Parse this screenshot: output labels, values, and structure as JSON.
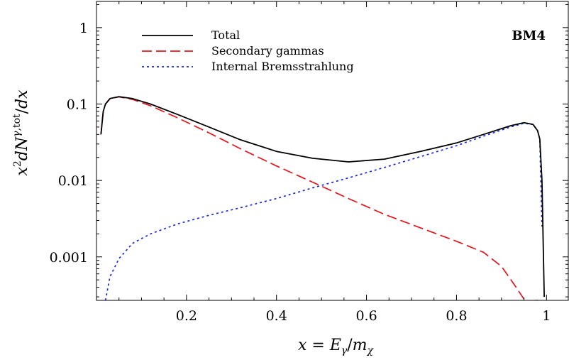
{
  "chart_data": {
    "type": "line",
    "annotation": "BM4",
    "xlabel": "x = E_γ/m_χ",
    "ylabel": "x²dN^{γ,tot}/dx",
    "x_scale": "linear",
    "y_scale": "log",
    "xlim": [
      0.0,
      1.05
    ],
    "ylim": [
      0.00027,
      2.2
    ],
    "x_ticks": [
      0.2,
      0.4,
      0.6,
      0.8,
      1.0
    ],
    "x_tick_labels": [
      "0.2",
      "0.4",
      "0.6",
      "0.8",
      "1"
    ],
    "y_ticks": [
      0.001,
      0.01,
      0.1,
      1
    ],
    "y_tick_labels": [
      "0.001",
      "0.01",
      "0.1",
      "1"
    ],
    "legend_position": "top-left",
    "grid": false,
    "series": [
      {
        "name": "Total",
        "color": "#000000",
        "style": "solid",
        "x": [
          0.01,
          0.015,
          0.02,
          0.03,
          0.05,
          0.08,
          0.12,
          0.18,
          0.25,
          0.32,
          0.4,
          0.48,
          0.56,
          0.64,
          0.72,
          0.8,
          0.86,
          0.92,
          0.95,
          0.97,
          0.98,
          0.985,
          0.99,
          0.995
        ],
        "y": [
          0.04,
          0.08,
          0.1,
          0.118,
          0.125,
          0.118,
          0.1,
          0.073,
          0.05,
          0.034,
          0.024,
          0.0195,
          0.0175,
          0.019,
          0.024,
          0.031,
          0.04,
          0.052,
          0.057,
          0.054,
          0.045,
          0.035,
          0.01,
          0.0003
        ]
      },
      {
        "name": "Secondary gammas",
        "color": "#e8141e",
        "style": "dashed",
        "x": [
          0.01,
          0.015,
          0.02,
          0.03,
          0.05,
          0.08,
          0.12,
          0.18,
          0.25,
          0.32,
          0.4,
          0.48,
          0.56,
          0.64,
          0.72,
          0.8,
          0.86,
          0.9,
          0.93,
          0.95,
          0.96,
          0.98,
          0.99
        ],
        "y": [
          0.04,
          0.08,
          0.1,
          0.117,
          0.124,
          0.115,
          0.095,
          0.066,
          0.042,
          0.026,
          0.0155,
          0.0095,
          0.0058,
          0.0036,
          0.0024,
          0.0016,
          0.00115,
          0.00075,
          0.00042,
          0.00028,
          0.000265,
          0.00027,
          0.00028
        ]
      },
      {
        "name": "Internal Bremsstrahlung",
        "color": "#1a2ad6",
        "style": "dotted",
        "x": [
          0.02,
          0.03,
          0.05,
          0.08,
          0.12,
          0.18,
          0.25,
          0.32,
          0.4,
          0.48,
          0.56,
          0.64,
          0.72,
          0.8,
          0.86,
          0.92,
          0.95,
          0.97,
          0.98,
          0.985,
          0.99
        ],
        "y": [
          0.00027,
          0.00055,
          0.00095,
          0.0015,
          0.002,
          0.0027,
          0.0035,
          0.0044,
          0.0058,
          0.008,
          0.0108,
          0.0148,
          0.0205,
          0.0285,
          0.038,
          0.05,
          0.056,
          0.054,
          0.045,
          0.035,
          0.0025
        ]
      }
    ]
  }
}
